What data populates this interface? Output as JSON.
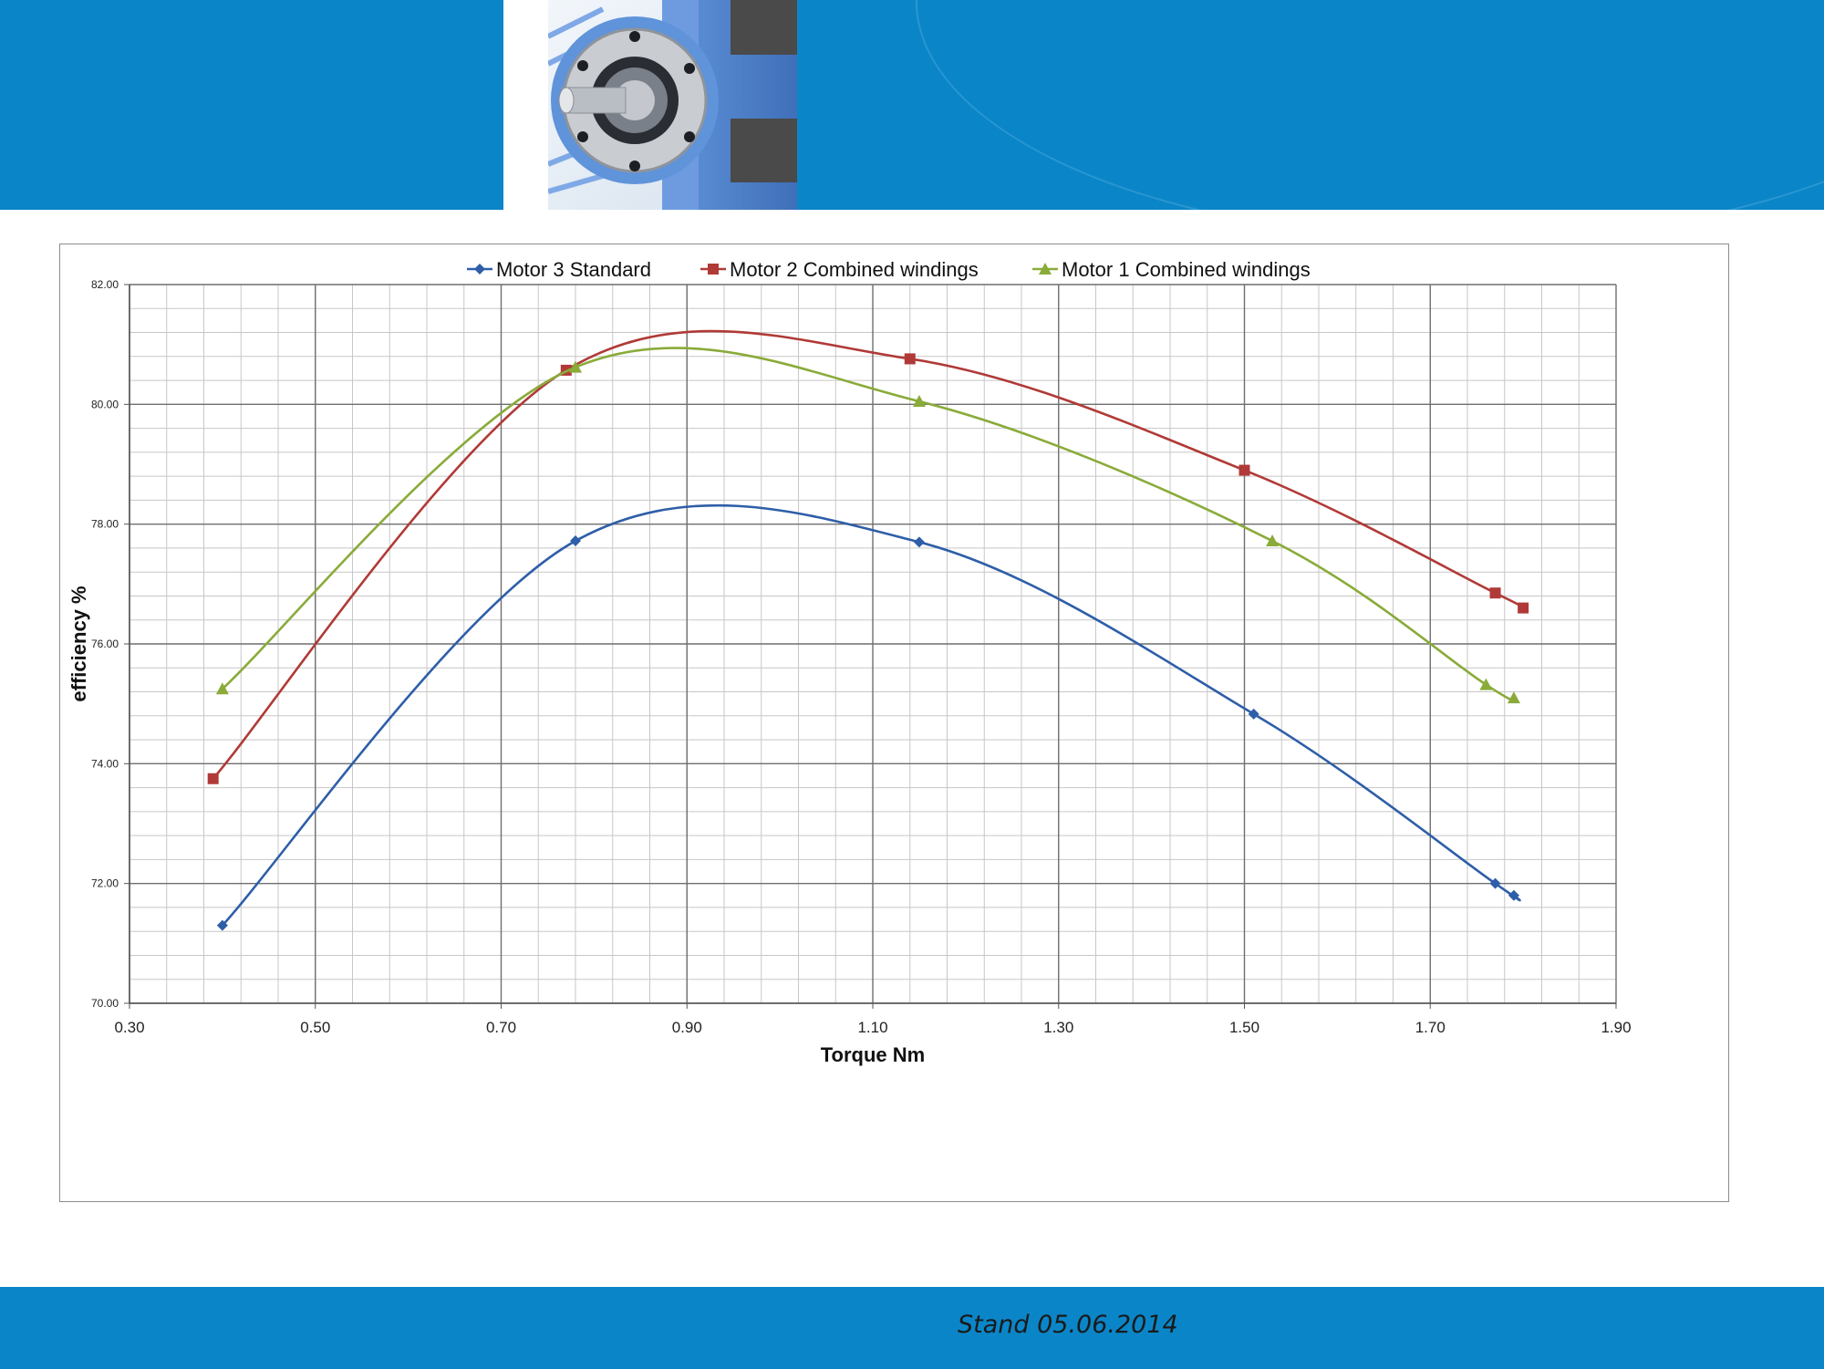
{
  "footer": {
    "stamp": "Stand 05.06.2014"
  },
  "colors": {
    "band": "#0a86c8",
    "motor3": "#2e5ea8",
    "motor2": "#b03a37",
    "motor1": "#8aab3a",
    "grid": "#9a9a9a"
  },
  "chart_data": {
    "type": "line",
    "title": "",
    "xlabel": "Torque Nm",
    "ylabel": "efficiency   %",
    "xlim": [
      0.3,
      1.9
    ],
    "ylim": [
      70.0,
      82.0
    ],
    "x_ticks": [
      "0.30",
      "0.50",
      "0.70",
      "0.90",
      "1.10",
      "1.30",
      "1.50",
      "1.70",
      "1.90"
    ],
    "y_ticks": [
      "70.00",
      "72.00",
      "74.00",
      "76.00",
      "78.00",
      "80.00",
      "82.00"
    ],
    "grid": true,
    "smooth": true,
    "legend_position": "top",
    "series": [
      {
        "name": "Motor 3 Standard",
        "marker": "diamond",
        "color": "#2e5ea8",
        "x": [
          0.4,
          0.78,
          1.15,
          1.51,
          1.77,
          1.79
        ],
        "y": [
          71.3,
          77.72,
          77.7,
          74.83,
          72.0,
          71.8
        ]
      },
      {
        "name": "Motor 2 Combined windings",
        "marker": "square",
        "color": "#b03a37",
        "x": [
          0.39,
          0.77,
          1.14,
          1.5,
          1.77,
          1.8
        ],
        "y": [
          73.75,
          80.57,
          80.76,
          78.9,
          76.85,
          76.6
        ]
      },
      {
        "name": "Motor 1 Combined windings",
        "marker": "triangle",
        "color": "#8aab3a",
        "x": [
          0.4,
          0.78,
          1.15,
          1.53,
          1.76,
          1.79
        ],
        "y": [
          75.25,
          80.62,
          80.05,
          77.72,
          75.32,
          75.1
        ]
      }
    ]
  }
}
